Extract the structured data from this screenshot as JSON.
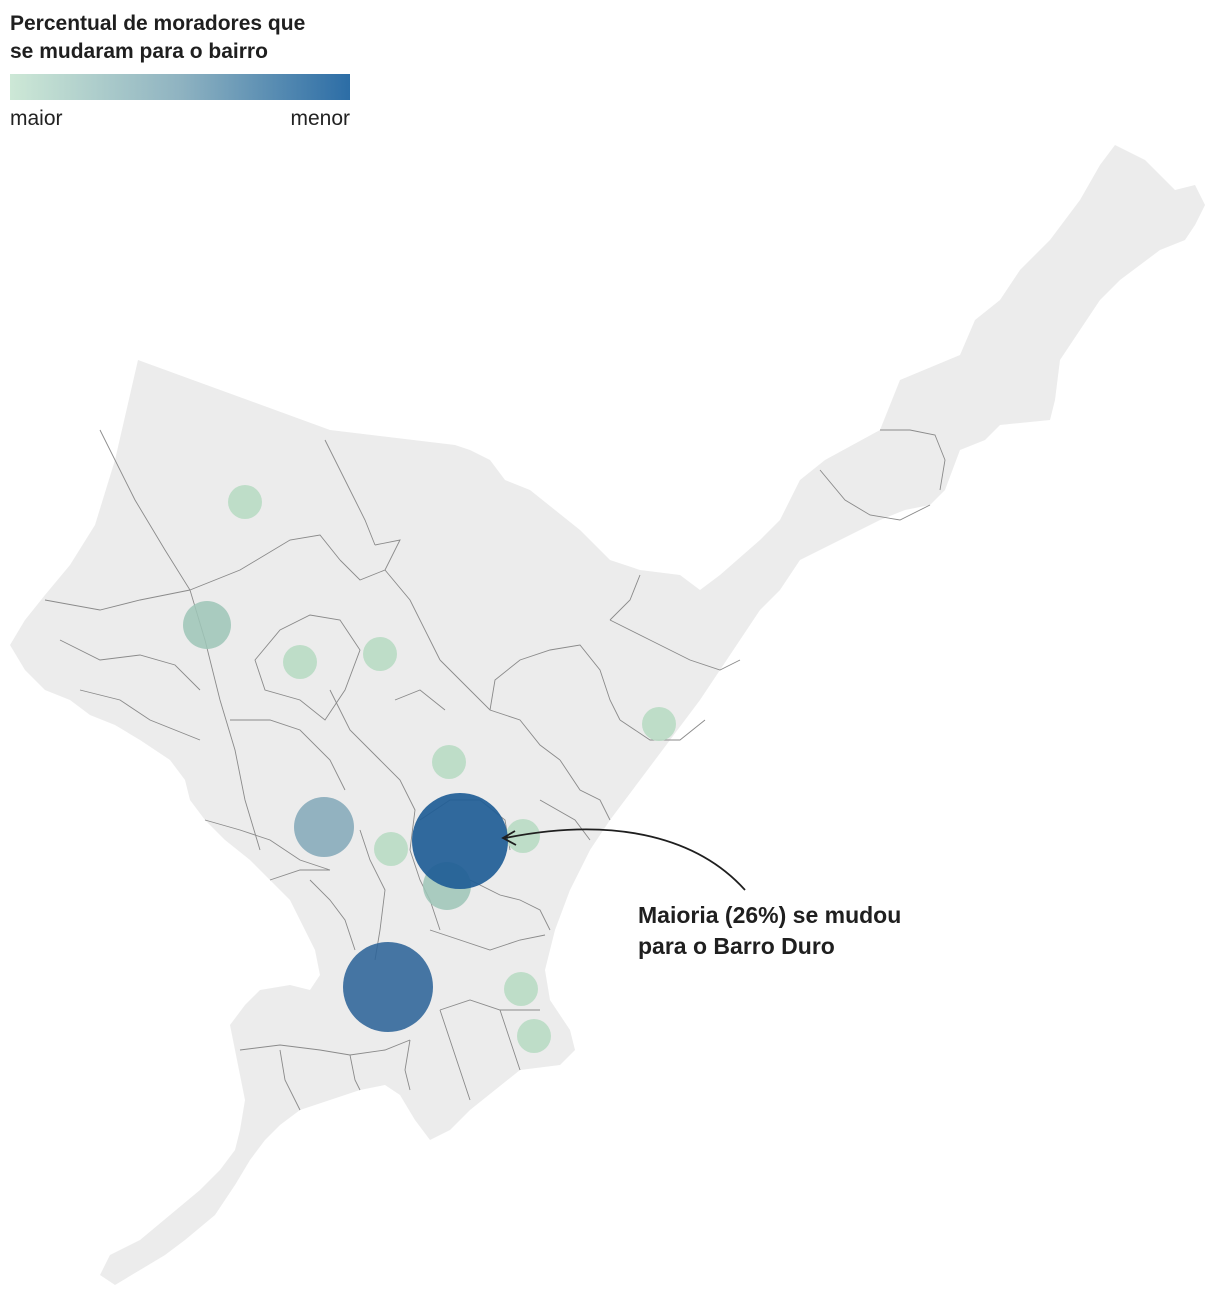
{
  "legend": {
    "title_line1": "Percentual de moradores que",
    "title_line2": "se mudaram para o bairro",
    "label_low": "maior",
    "label_high": "menor",
    "color_start": "#cde8d6",
    "color_end": "#2c6da6"
  },
  "annotation": {
    "line1": "Maioria (26%) se mudou",
    "line2": "para o Barro Duro"
  },
  "colors": {
    "land": "#ececec",
    "border": "#8a8a8a",
    "bubble_light": "#b9dcc4",
    "bubble_mid_light": "#9ec6b7",
    "bubble_mid": "#82a8b8",
    "bubble_dark": "#1f5d96",
    "bubble_dark2": "#2d6499"
  },
  "icons": [
    "arrow-annotation-icon"
  ]
}
